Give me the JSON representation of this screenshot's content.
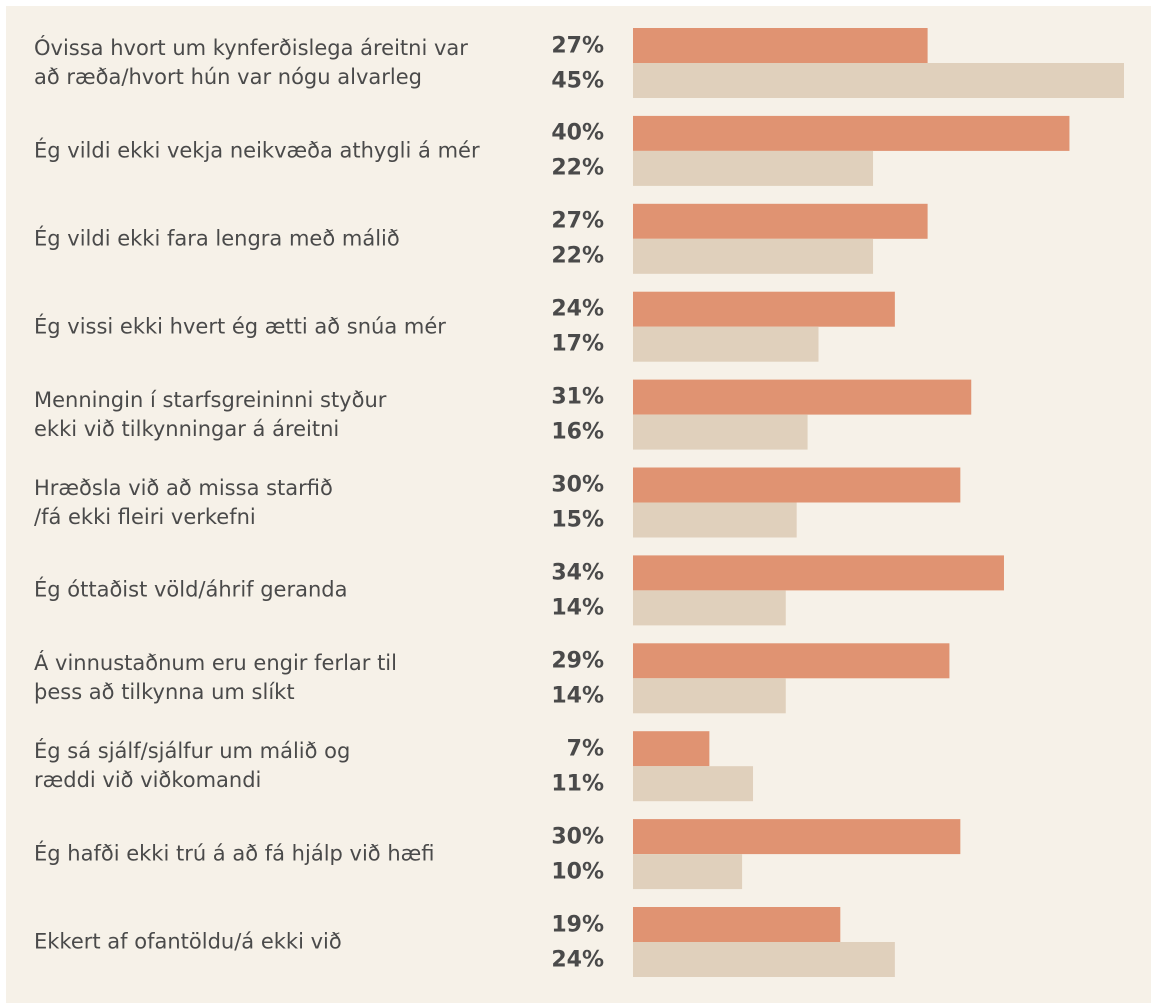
{
  "chart_data": {
    "type": "bar",
    "orientation": "horizontal",
    "categories": [
      "Óvissa hvort um kynferðislega áreitni var\nað ræða/hvort hún var nógu alvarleg",
      "Ég vildi ekki vekja neikvæða athygli á mér",
      "Ég vildi ekki fara lengra með málið",
      "Ég vissi ekki hvert ég ætti að snúa mér",
      "Menningin í starfsgreininni styður\nekki við tilkynningar á áreitni",
      "Hræðsla við að missa starfið\n/fá ekki fleiri verkefni",
      "Ég óttaðist völd/áhrif geranda",
      "Á vinnustaðnum eru engir ferlar til\nþess að tilkynna um slíkt",
      "Ég sá sjálf/sjálfur um málið og\nræddi við viðkomandi",
      "Ég hafði ekki trú á að fá hjálp við hæfi",
      "Ekkert af ofantöldu/á ekki við"
    ],
    "series": [
      {
        "values": [
          27,
          40,
          27,
          24,
          31,
          30,
          34,
          29,
          7,
          30,
          19
        ],
        "color": "#e09372"
      },
      {
        "values": [
          45,
          22,
          22,
          17,
          16,
          15,
          14,
          14,
          11,
          10,
          24
        ],
        "color": "#e0d0bc"
      }
    ],
    "value_suffix": "%",
    "xlim": [
      0,
      45
    ],
    "grid": false,
    "legend": "none"
  }
}
